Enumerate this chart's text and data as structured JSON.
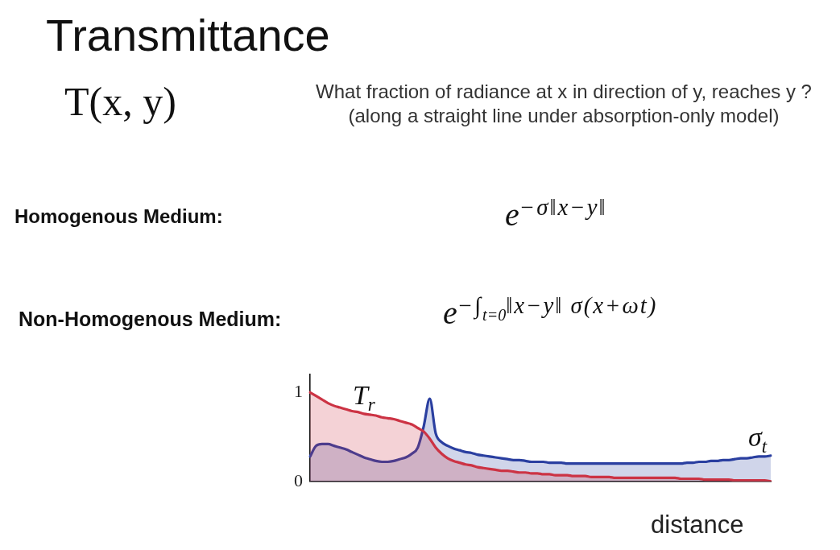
{
  "chart_data": {
    "type": "area",
    "title": "Transmittance",
    "subtitle": "What fraction of radiance at x in direction of y, reaches y ?\n(along a straight line under absorption-only model)",
    "xlabel": "distance",
    "annotations": [
      "T(x, y)",
      "Homogenous Medium:",
      "e$^{−σ‖x−y‖}$",
      "Non-Homogenous Medium:",
      "e$^{−∫}$$_{t=0}$$^{‖x−y‖ σ(x+ωt)}$"
    ],
    "categories": [
      null,
      null,
      null,
      null,
      null,
      null,
      null,
      null,
      null,
      null,
      null,
      null,
      null,
      null,
      null,
      null,
      null,
      null,
      null,
      null,
      null,
      null,
      null,
      null,
      null,
      null,
      null,
      null,
      null,
      null,
      null,
      null,
      null,
      null,
      null,
      null,
      null,
      null,
      null,
      null,
      null,
      null,
      null,
      null,
      null,
      null,
      null,
      null,
      null,
      null,
      null,
      null,
      null,
      null,
      null,
      null,
      null,
      null,
      null,
      null,
      null,
      null,
      null,
      null,
      null,
      null,
      null,
      null,
      null,
      null,
      null,
      null,
      null,
      null,
      null,
      null,
      null,
      null
    ],
    "series": [
      {
        "name": "T$_{r}$",
        "color": "#cc3344",
        "values": [
          1.0,
          0.96,
          0.92,
          0.88,
          0.85,
          0.83,
          0.81,
          0.79,
          0.78,
          0.76,
          0.75,
          0.74,
          0.72,
          0.71,
          0.7,
          0.68,
          0.66,
          0.64,
          0.6,
          0.56,
          0.48,
          0.38,
          0.31,
          0.26,
          0.23,
          0.21,
          0.19,
          0.18,
          0.16,
          0.15,
          0.14,
          0.13,
          0.12,
          0.12,
          0.11,
          0.1,
          0.1,
          0.09,
          0.09,
          0.08,
          0.08,
          0.07,
          0.07,
          0.07,
          0.06,
          0.06,
          0.06,
          0.05,
          0.05,
          0.05,
          0.05,
          0.04,
          0.04,
          0.04,
          0.04,
          0.04,
          0.04,
          0.04,
          0.04,
          0.04,
          0.04,
          0.04,
          0.03,
          0.03,
          0.03,
          0.03,
          0.02,
          0.02,
          0.02,
          0.02,
          0.02,
          0.01,
          0.01,
          0.01,
          0.01,
          0.01,
          0.01,
          0.0
        ]
      },
      {
        "name": "σ$_{t}$",
        "color": "#2a3fa0",
        "values": [
          0.28,
          0.4,
          0.42,
          0.42,
          0.4,
          0.38,
          0.36,
          0.33,
          0.3,
          0.27,
          0.25,
          0.23,
          0.22,
          0.22,
          0.23,
          0.25,
          0.27,
          0.31,
          0.38,
          0.62,
          0.93,
          0.54,
          0.44,
          0.4,
          0.37,
          0.35,
          0.33,
          0.32,
          0.3,
          0.29,
          0.28,
          0.27,
          0.26,
          0.25,
          0.24,
          0.24,
          0.23,
          0.22,
          0.22,
          0.22,
          0.21,
          0.21,
          0.21,
          0.2,
          0.2,
          0.2,
          0.2,
          0.2,
          0.2,
          0.2,
          0.2,
          0.2,
          0.2,
          0.2,
          0.2,
          0.2,
          0.2,
          0.2,
          0.2,
          0.2,
          0.2,
          0.2,
          0.2,
          0.21,
          0.21,
          0.22,
          0.22,
          0.23,
          0.23,
          0.24,
          0.24,
          0.25,
          0.26,
          0.26,
          0.27,
          0.28,
          0.28,
          0.29
        ]
      }
    ],
    "ylim": [
      0,
      1.2
    ],
    "yticks": [
      0,
      1
    ],
    "marker": "none"
  }
}
